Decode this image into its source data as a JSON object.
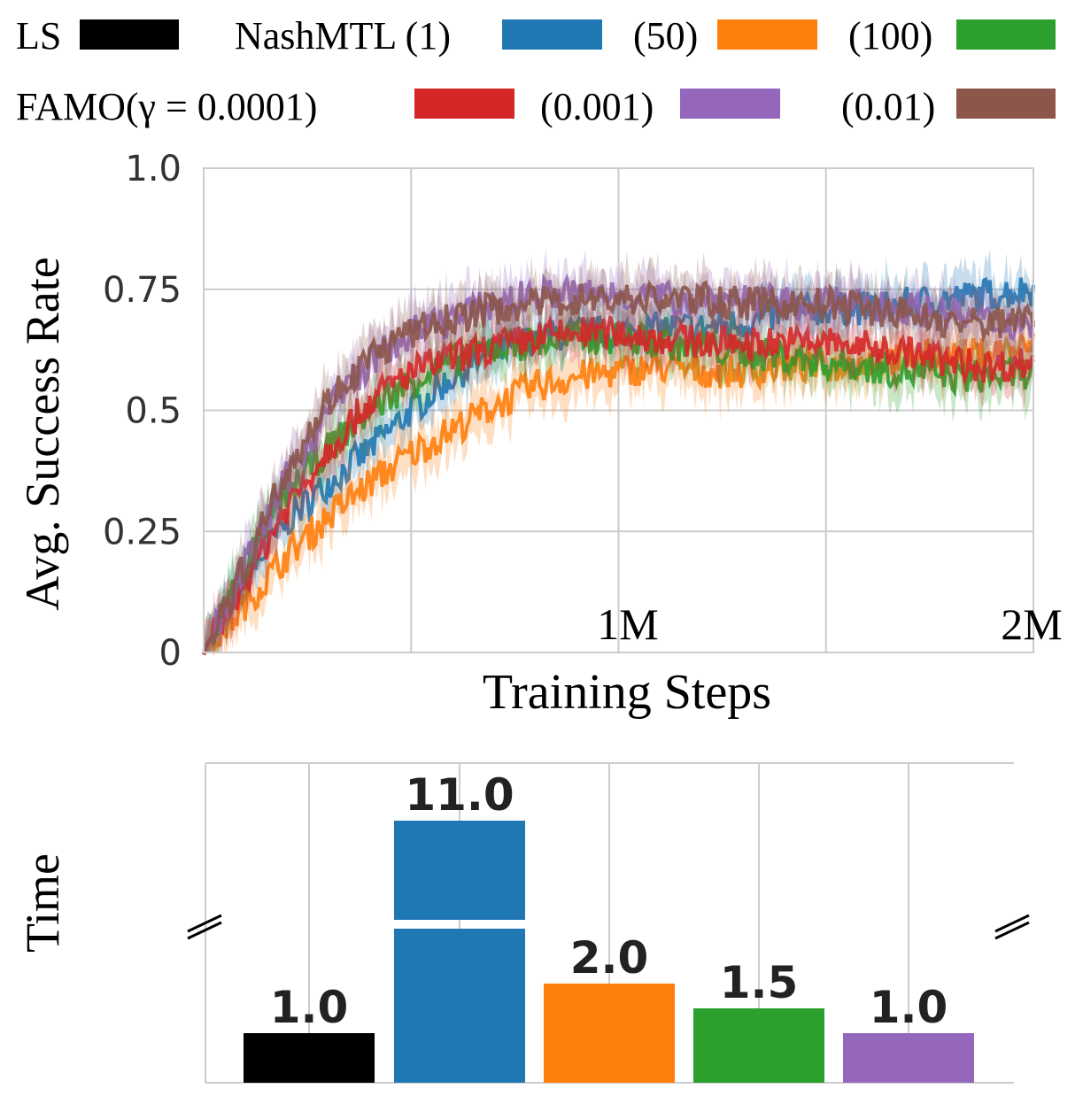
{
  "legend": {
    "row1": [
      {
        "label": "LS",
        "color": "#000000"
      },
      {
        "label": "NashMTL (1)",
        "color": "#1f77b4"
      },
      {
        "label": "(50)",
        "color": "#ff7f0e"
      },
      {
        "label": "(100)",
        "color": "#2ca02c"
      }
    ],
    "row2": [
      {
        "label": "FAMO(γ = 0.0001)",
        "color": "#d62728"
      },
      {
        "label": "(0.001)",
        "color": "#9467bd"
      },
      {
        "label": "(0.01)",
        "color": "#8c564b"
      }
    ]
  },
  "chart_data": [
    {
      "type": "line",
      "ylabel": "Avg. Success Rate",
      "xlabel": "Training Steps",
      "xlim": [
        0,
        2000000
      ],
      "ylim": [
        0,
        1.0
      ],
      "grid": true,
      "yticks": [
        "0",
        "0.25",
        "0.5",
        "0.75",
        "1.0"
      ],
      "xtick_labels": [
        {
          "x": 1000000,
          "label": "1M"
        },
        {
          "x": 2000000,
          "label": "2M"
        }
      ],
      "x": [
        0,
        100000,
        200000,
        300000,
        400000,
        500000,
        600000,
        700000,
        800000,
        900000,
        1000000,
        1100000,
        1200000,
        1300000,
        1400000,
        1500000,
        1600000,
        1700000,
        1800000,
        1900000,
        2000000
      ],
      "series": [
        {
          "name": "NashMTL (1)",
          "color": "#1f77b4",
          "values": [
            0,
            0.15,
            0.27,
            0.35,
            0.42,
            0.5,
            0.57,
            0.62,
            0.65,
            0.66,
            0.66,
            0.67,
            0.67,
            0.68,
            0.7,
            0.71,
            0.71,
            0.72,
            0.73,
            0.74,
            0.75
          ]
        },
        {
          "name": "(50)",
          "color": "#ff7f0e",
          "values": [
            0,
            0.1,
            0.2,
            0.28,
            0.35,
            0.41,
            0.46,
            0.51,
            0.55,
            0.57,
            0.58,
            0.59,
            0.58,
            0.58,
            0.59,
            0.59,
            0.6,
            0.61,
            0.61,
            0.62,
            0.63
          ]
        },
        {
          "name": "(100)",
          "color": "#2ca02c",
          "values": [
            0,
            0.18,
            0.33,
            0.42,
            0.5,
            0.56,
            0.6,
            0.63,
            0.64,
            0.65,
            0.65,
            0.64,
            0.63,
            0.62,
            0.61,
            0.6,
            0.59,
            0.58,
            0.57,
            0.57,
            0.58
          ]
        },
        {
          "name": "FAMO(γ = 0.0001)",
          "color": "#d62728",
          "values": [
            0,
            0.15,
            0.3,
            0.42,
            0.52,
            0.58,
            0.61,
            0.63,
            0.65,
            0.66,
            0.66,
            0.65,
            0.64,
            0.64,
            0.64,
            0.64,
            0.63,
            0.62,
            0.6,
            0.59,
            0.6
          ]
        },
        {
          "name": "(0.001)",
          "color": "#9467bd",
          "values": [
            0,
            0.18,
            0.36,
            0.5,
            0.6,
            0.66,
            0.69,
            0.72,
            0.74,
            0.74,
            0.74,
            0.73,
            0.73,
            0.73,
            0.72,
            0.72,
            0.72,
            0.71,
            0.7,
            0.68,
            0.68
          ]
        },
        {
          "name": "(0.01)",
          "color": "#8c564b",
          "values": [
            0,
            0.18,
            0.38,
            0.52,
            0.61,
            0.66,
            0.69,
            0.71,
            0.72,
            0.73,
            0.73,
            0.73,
            0.73,
            0.72,
            0.72,
            0.72,
            0.71,
            0.7,
            0.68,
            0.68,
            0.7
          ]
        }
      ]
    },
    {
      "type": "bar",
      "ylabel": "Time",
      "broken_axis": true,
      "grid": true,
      "bars": [
        {
          "value": 1.0,
          "label": "1.0",
          "color": "#000000"
        },
        {
          "value": 11.0,
          "label": "11.0",
          "color": "#1f77b4"
        },
        {
          "value": 2.0,
          "label": "2.0",
          "color": "#ff7f0e"
        },
        {
          "value": 1.5,
          "label": "1.5",
          "color": "#2ca02c"
        },
        {
          "value": 1.0,
          "label": "1.0",
          "color": "#9467bd"
        }
      ]
    }
  ]
}
